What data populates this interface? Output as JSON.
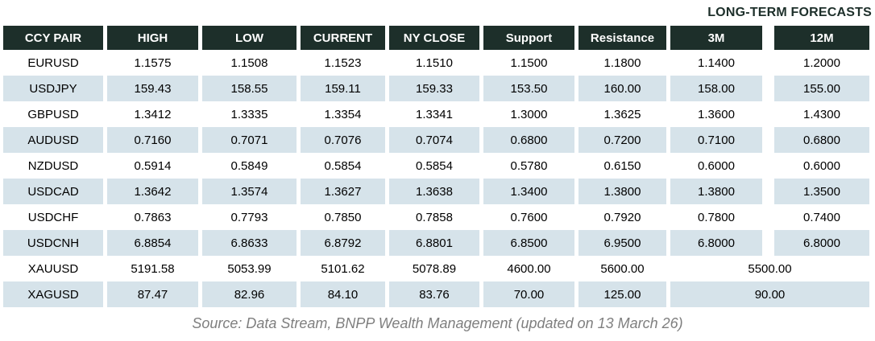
{
  "forecast_title": "LONG-TERM FORECASTS",
  "columns": [
    "CCY PAIR",
    "HIGH",
    "LOW",
    "CURRENT",
    "NY CLOSE",
    "Support",
    "Resistance",
    "3M",
    "12M"
  ],
  "rows": [
    {
      "pair": "EURUSD",
      "high": "1.1575",
      "low": "1.1508",
      "current": "1.1523",
      "ny_close": "1.1510",
      "support": "1.1500",
      "resistance": "1.1800",
      "m3": "1.1400",
      "m12": "1.2000"
    },
    {
      "pair": "USDJPY",
      "high": "159.43",
      "low": "158.55",
      "current": "159.11",
      "ny_close": "159.33",
      "support": "153.50",
      "resistance": "160.00",
      "m3": "158.00",
      "m12": "155.00"
    },
    {
      "pair": "GBPUSD",
      "high": "1.3412",
      "low": "1.3335",
      "current": "1.3354",
      "ny_close": "1.3341",
      "support": "1.3000",
      "resistance": "1.3625",
      "m3": "1.3600",
      "m12": "1.4300"
    },
    {
      "pair": "AUDUSD",
      "high": "0.7160",
      "low": "0.7071",
      "current": "0.7076",
      "ny_close": "0.7074",
      "support": "0.6800",
      "resistance": "0.7200",
      "m3": "0.7100",
      "m12": "0.6800"
    },
    {
      "pair": "NZDUSD",
      "high": "0.5914",
      "low": "0.5849",
      "current": "0.5854",
      "ny_close": "0.5854",
      "support": "0.5780",
      "resistance": "0.6150",
      "m3": "0.6000",
      "m12": "0.6000"
    },
    {
      "pair": "USDCAD",
      "high": "1.3642",
      "low": "1.3574",
      "current": "1.3627",
      "ny_close": "1.3638",
      "support": "1.3400",
      "resistance": "1.3800",
      "m3": "1.3800",
      "m12": "1.3500"
    },
    {
      "pair": "USDCHF",
      "high": "0.7863",
      "low": "0.7793",
      "current": "0.7850",
      "ny_close": "0.7858",
      "support": "0.7600",
      "resistance": "0.7920",
      "m3": "0.7800",
      "m12": "0.7400"
    },
    {
      "pair": "USDCNH",
      "high": "6.8854",
      "low": "6.8633",
      "current": "6.8792",
      "ny_close": "6.8801",
      "support": "6.8500",
      "resistance": "6.9500",
      "m3": "6.8000",
      "m12": "6.8000"
    },
    {
      "pair": "XAUUSD",
      "high": "5191.58",
      "low": "5053.99",
      "current": "5101.62",
      "ny_close": "5078.89",
      "support": "4600.00",
      "resistance": "5600.00",
      "forecast": "5500.00"
    },
    {
      "pair": "XAGUSD",
      "high": "87.47",
      "low": "82.96",
      "current": "84.10",
      "ny_close": "83.76",
      "support": "70.00",
      "resistance": "125.00",
      "forecast": "90.00"
    }
  ],
  "source": "Source: Data Stream, BNPP Wealth Management (updated on 13 March 26)",
  "colors": {
    "header_bg": "#1d2f2a",
    "alt_row_bg": "#d6e3ea",
    "title_color": "#1d2f2a",
    "source_color": "#7f7f7f"
  },
  "chart_data": {
    "type": "table",
    "title": "LONG-TERM FORECASTS",
    "columns": [
      "CCY PAIR",
      "HIGH",
      "LOW",
      "CURRENT",
      "NY CLOSE",
      "Support",
      "Resistance",
      "3M",
      "12M"
    ],
    "rows": [
      [
        "EURUSD",
        1.1575,
        1.1508,
        1.1523,
        1.151,
        1.15,
        1.18,
        1.14,
        1.2
      ],
      [
        "USDJPY",
        159.43,
        158.55,
        159.11,
        159.33,
        153.5,
        160.0,
        158.0,
        155.0
      ],
      [
        "GBPUSD",
        1.3412,
        1.3335,
        1.3354,
        1.3341,
        1.3,
        1.3625,
        1.36,
        1.43
      ],
      [
        "AUDUSD",
        0.716,
        0.7071,
        0.7076,
        0.7074,
        0.68,
        0.72,
        0.71,
        0.68
      ],
      [
        "NZDUSD",
        0.5914,
        0.5849,
        0.5854,
        0.5854,
        0.578,
        0.615,
        0.6,
        0.6
      ],
      [
        "USDCAD",
        1.3642,
        1.3574,
        1.3627,
        1.3638,
        1.34,
        1.38,
        1.38,
        1.35
      ],
      [
        "USDCHF",
        0.7863,
        0.7793,
        0.785,
        0.7858,
        0.76,
        0.792,
        0.78,
        0.74
      ],
      [
        "USDCNH",
        6.8854,
        6.8633,
        6.8792,
        6.8801,
        6.85,
        6.95,
        6.8,
        6.8
      ],
      [
        "XAUUSD",
        5191.58,
        5053.99,
        5101.62,
        5078.89,
        4600.0,
        5600.0,
        5500.0,
        5500.0
      ],
      [
        "XAGUSD",
        87.47,
        82.96,
        84.1,
        83.76,
        70.0,
        125.0,
        90.0,
        90.0
      ]
    ],
    "notes": "3M and 12M forecast cells are merged into a single value for XAUUSD (5500.00) and XAGUSD (90.00)."
  }
}
